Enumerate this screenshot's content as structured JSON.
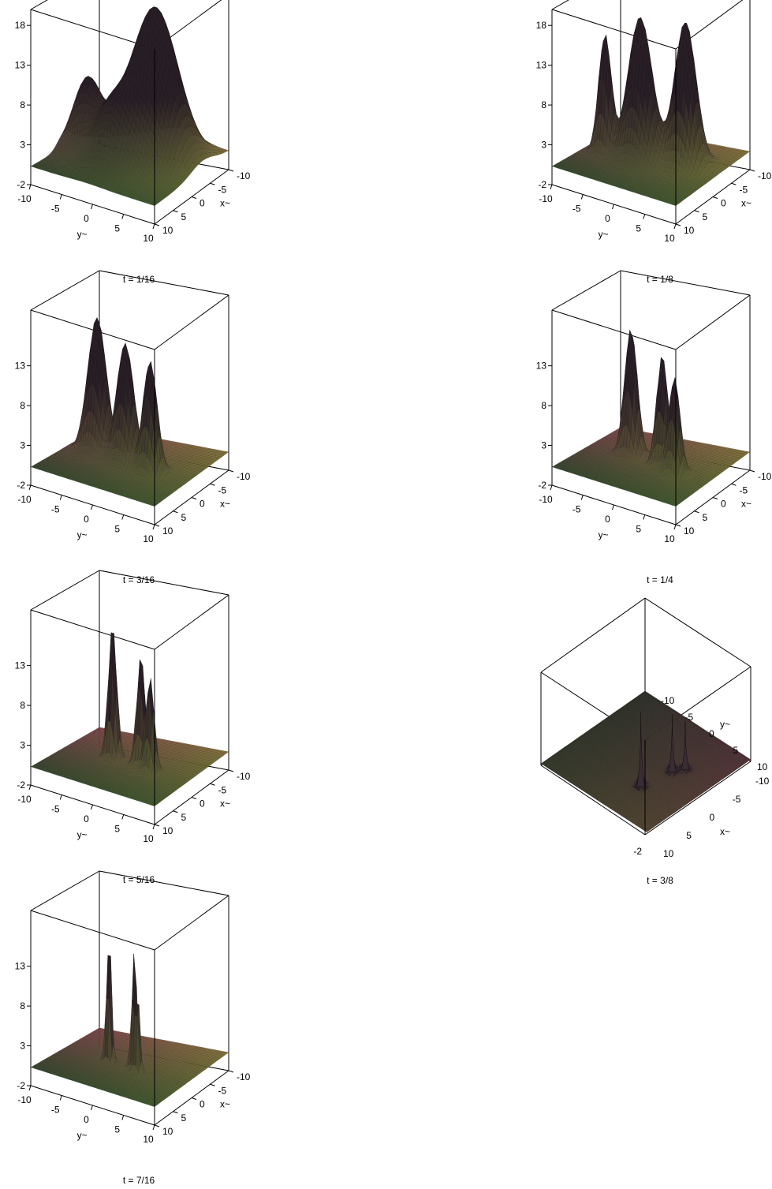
{
  "chart_data": [
    {
      "type": "surface3d",
      "caption": "t = 1/16",
      "xlabel": "x~",
      "ylabel": "y~",
      "zticks": [
        "-2",
        "3",
        "8",
        "13",
        "18"
      ],
      "xticks": [
        "-10",
        "-5",
        "0",
        "5",
        "10"
      ],
      "yticks": [
        "-10",
        "-5",
        "0",
        "5",
        "10"
      ],
      "xlim": [
        -10,
        10
      ],
      "ylim": [
        -10,
        10
      ],
      "zlim": [
        -2,
        20
      ],
      "view": "standard",
      "peaks": [
        {
          "y": 2.5,
          "x": -3,
          "z": 19,
          "w": 3.2
        },
        {
          "y": -6.5,
          "x": 0,
          "z": 9,
          "w": 2.0
        },
        {
          "y": -1,
          "x": 3,
          "z": 7,
          "w": 2.5
        }
      ]
    },
    {
      "type": "surface3d",
      "caption": "t = 1/8",
      "xlabel": "x~",
      "ylabel": "y~",
      "zticks": [
        "-2",
        "3",
        "8",
        "13",
        "18"
      ],
      "xticks": [
        "-10",
        "-5",
        "0",
        "5",
        "10"
      ],
      "yticks": [
        "-10",
        "-5",
        "0",
        "5",
        "10"
      ],
      "xlim": [
        -10,
        10
      ],
      "ylim": [
        -10,
        10
      ],
      "zlim": [
        -2,
        20
      ],
      "view": "standard",
      "peaks": [
        {
          "y": -6.5,
          "x": 1,
          "z": 15,
          "w": 0.9
        },
        {
          "y": -1.5,
          "x": 0,
          "z": 18,
          "w": 1.7
        },
        {
          "y": 4.5,
          "x": -2,
          "z": 18,
          "w": 1.5
        }
      ]
    },
    {
      "type": "surface3d",
      "caption": "t = 3/16",
      "xlabel": "x~",
      "ylabel": "y~",
      "zticks": [
        "-2",
        "3",
        "8",
        "13"
      ],
      "xticks": [
        "-10",
        "-5",
        "0",
        "5",
        "10"
      ],
      "yticks": [
        "-10",
        "-5",
        "0",
        "5",
        "10"
      ],
      "xlim": [
        -10,
        10
      ],
      "ylim": [
        -10,
        10
      ],
      "zlim": [
        -2,
        20
      ],
      "view": "standard",
      "peaks": [
        {
          "y": -5.5,
          "x": -1,
          "z": 17,
          "w": 1.3
        },
        {
          "y": -0.5,
          "x": 0,
          "z": 15,
          "w": 1.2
        },
        {
          "y": 4,
          "x": 1,
          "z": 14,
          "w": 1.0
        }
      ]
    },
    {
      "type": "surface3d",
      "caption": "t = 1/4",
      "xlabel": "x~",
      "ylabel": "y~",
      "zticks": [
        "-2",
        "3",
        "8",
        "13"
      ],
      "xticks": [
        "-10",
        "-5",
        "0",
        "5",
        "10"
      ],
      "yticks": [
        "-10",
        "-5",
        "0",
        "5",
        "10"
      ],
      "xlim": [
        -10,
        10
      ],
      "ylim": [
        -10,
        10
      ],
      "zlim": [
        -2,
        20
      ],
      "view": "standard",
      "peaks": [
        {
          "y": -3.5,
          "x": -1,
          "z": 16,
          "w": 0.9
        },
        {
          "y": 2,
          "x": 0,
          "z": 14,
          "w": 0.8
        },
        {
          "y": 4.5,
          "x": 1,
          "z": 12,
          "w": 0.8
        }
      ]
    },
    {
      "type": "surface3d",
      "caption": "t = 5/16",
      "xlabel": "x~",
      "ylabel": "y~",
      "zticks": [
        "-2",
        "3",
        "8",
        "13"
      ],
      "xticks": [
        "-10",
        "-5",
        "0",
        "5",
        "10"
      ],
      "yticks": [
        "-10",
        "-5",
        "0",
        "5",
        "10"
      ],
      "xlim": [
        -10,
        10
      ],
      "ylim": [
        -10,
        10
      ],
      "zlim": [
        -2,
        20
      ],
      "view": "standard",
      "peaks": [
        {
          "y": -2.5,
          "x": 0,
          "z": 17,
          "w": 0.6
        },
        {
          "y": 2,
          "x": 0,
          "z": 14,
          "w": 0.6
        },
        {
          "y": 4,
          "x": 1,
          "z": 12,
          "w": 0.6
        }
      ]
    },
    {
      "type": "surface3d",
      "caption": "t = 3/8",
      "xlabel": "x~",
      "ylabel": "y~",
      "zticks": [
        "-2"
      ],
      "xticks": [
        "-10",
        "-5",
        "0",
        "5",
        "10"
      ],
      "yticks": [
        "-10",
        "-5",
        "0",
        "5",
        "10"
      ],
      "xlim": [
        -10,
        10
      ],
      "ylim": [
        -10,
        10
      ],
      "zlim": [
        -2,
        20
      ],
      "view": "rotated",
      "peaks": [
        {
          "y": -4,
          "x": 3,
          "z": 17,
          "w": 0.45
        },
        {
          "y": 1,
          "x": 4,
          "z": 13,
          "w": 0.45
        },
        {
          "y": 2.5,
          "x": 5,
          "z": 11,
          "w": 0.45
        }
      ]
    },
    {
      "type": "surface3d",
      "caption": "t = 7/16",
      "xlabel": "x~",
      "ylabel": "y~",
      "zticks": [
        "-2",
        "3",
        "8",
        "13"
      ],
      "xticks": [
        "-10",
        "-5",
        "0",
        "5",
        "10"
      ],
      "yticks": [
        "-10",
        "-5",
        "0",
        "5",
        "10"
      ],
      "xlim": [
        -10,
        10
      ],
      "ylim": [
        -10,
        10
      ],
      "zlim": [
        -2,
        20
      ],
      "view": "standard",
      "peaks": [
        {
          "y": -2.5,
          "x": 1,
          "z": 17,
          "w": 0.35
        },
        {
          "y": 1.5,
          "x": 1,
          "z": 16,
          "w": 0.35
        },
        {
          "y": 2.5,
          "x": 2,
          "z": 12,
          "w": 0.35
        }
      ]
    }
  ],
  "colors": {
    "surface_dark": "#2a1f26",
    "surface_green": "#3f5a2a",
    "surface_red": "#8a4a4e",
    "surface_yellow": "#8a7a3a",
    "axes": "#000000"
  }
}
